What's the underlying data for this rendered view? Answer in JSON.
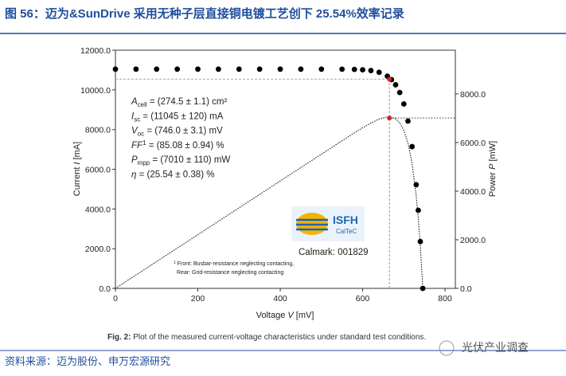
{
  "header": {
    "title": "图 56：迈为&SunDrive 采用无种子层直接铜电镀工艺创下 25.54%效率记录"
  },
  "chart_data": {
    "type": "line",
    "xlabel": {
      "text": "Voltage ",
      "symbol": "V",
      "unit": " [mV]"
    },
    "ylabel": {
      "text": "Current ",
      "symbol": "I",
      "unit": " [mA]"
    },
    "y2label": {
      "text": "Power ",
      "symbol": "P",
      "unit": " [mW]"
    },
    "x": [
      0,
      50,
      100,
      150,
      200,
      250,
      300,
      350,
      400,
      450,
      500,
      550,
      580,
      600,
      620,
      640,
      660,
      670,
      680,
      690,
      700,
      710,
      720,
      730,
      735,
      740,
      746
    ],
    "series": [
      {
        "color": "#000000",
        "style": "dots",
        "axis": "y",
        "values": [
          11045,
          11045,
          11045,
          11045,
          11045,
          11045,
          11045,
          11045,
          11045,
          11044,
          11044,
          11041,
          11031,
          11013,
          10974,
          10886,
          10691,
          10517,
          10256,
          9869,
          9291,
          8428,
          7141,
          5221,
          3932,
          2357,
          0
        ]
      },
      {
        "color": "#000000",
        "style": "dotted",
        "axis": "y2",
        "values": [
          0,
          552,
          1105,
          1657,
          2209,
          2761,
          3314,
          3866,
          4418,
          4970,
          5522,
          6073,
          6398,
          6608,
          6804,
          6967,
          7056,
          7046,
          6974,
          6810,
          6504,
          5984,
          5142,
          3811,
          2890,
          1744,
          0
        ]
      }
    ],
    "mpp": {
      "x": 665,
      "current": 10540,
      "power": 7010,
      "color": "#d9201f"
    },
    "xlim": [
      0,
      825
    ],
    "xticks": [
      0,
      200,
      400,
      600,
      800
    ],
    "ylim": [
      0,
      12000
    ],
    "yticks": [
      {
        "value": 0,
        "label": "0.0"
      },
      {
        "value": 2000,
        "label": "2000.0"
      },
      {
        "value": 4000,
        "label": "4000.0"
      },
      {
        "value": 6000,
        "label": "6000.0"
      },
      {
        "value": 8000,
        "label": "8000.0"
      },
      {
        "value": 10000,
        "label": "10000.0"
      },
      {
        "value": 12000,
        "label": "12000.0"
      }
    ],
    "y2lim": [
      0,
      9800
    ],
    "y2ticks": [
      {
        "value": 0,
        "label": "0.0"
      },
      {
        "value": 2000,
        "label": "2000.0"
      },
      {
        "value": 4000,
        "label": "4000.0"
      },
      {
        "value": 6000,
        "label": "6000.0"
      },
      {
        "value": 8000,
        "label": "8000.0"
      }
    ],
    "annotations": [
      {
        "symbol": "A",
        "sub": "cell",
        "text": " = (274.5 ± 1.1) cm²"
      },
      {
        "symbol": "I",
        "sub": "sc",
        "text": " = (11045 ± 120) mA"
      },
      {
        "symbol": "V",
        "sub": "oc",
        "text": " = (746.0 ± 3.1) mV"
      },
      {
        "symbol": "FF",
        "sup": "1",
        "text": " = (85.08 ± 0.94) %"
      },
      {
        "symbol": "P",
        "sub": "mpp",
        "text": " = (7010 ± 110) mW"
      },
      {
        "symbol": "η",
        "text": " = (25.54 ± 0.38) %"
      }
    ],
    "logo": {
      "name": "ISFH",
      "sub": "CalTeC"
    },
    "calmark": "Calmark: 001829",
    "footnote": {
      "mark": "1",
      "line1": " Front: Busbar-resistance neglecting contacting,",
      "line2": "Rear: Grid-resistance neglecting contacting"
    },
    "caption": {
      "label": "Fig. 2:",
      "text": " Plot of the measured current-voltage characteristics under standard test conditions."
    }
  },
  "source": "资料来源：迈为股份、申万宏源研究",
  "watermark": "光伏产业调查"
}
